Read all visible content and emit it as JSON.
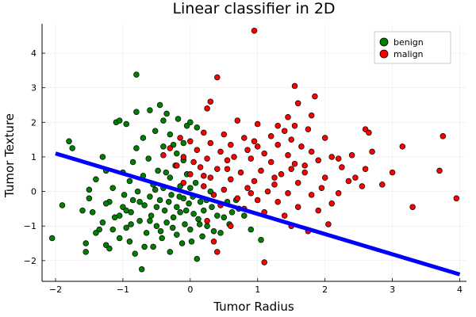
{
  "chart_data": {
    "type": "scatter",
    "title": "Linear classifier in 2D",
    "xlabel": "Tumor Radius",
    "ylabel": "Tumor Texture",
    "xlim": [
      -2.2,
      4.1
    ],
    "ylim": [
      -2.6,
      4.85
    ],
    "xticks": [
      -2,
      -1,
      0,
      1,
      2,
      3,
      4
    ],
    "yticks": [
      -2,
      -1,
      0,
      1,
      2,
      3,
      4
    ],
    "grid": true,
    "legend_position": "top-right",
    "series": [
      {
        "name": "benign",
        "color": "#008000",
        "points": [
          [
            -2.05,
            -1.35
          ],
          [
            -1.8,
            1.45
          ],
          [
            -1.75,
            1.25
          ],
          [
            -1.6,
            -0.55
          ],
          [
            -1.55,
            -1.5
          ],
          [
            -1.55,
            -1.75
          ],
          [
            -1.5,
            -0.2
          ],
          [
            -1.45,
            -0.6
          ],
          [
            -1.4,
            0.35
          ],
          [
            -1.35,
            -1.1
          ],
          [
            -1.3,
            -0.9
          ],
          [
            -1.3,
            1.0
          ],
          [
            -1.25,
            0.6
          ],
          [
            -1.25,
            -1.55
          ],
          [
            -1.2,
            -1.65
          ],
          [
            -1.2,
            -0.3
          ],
          [
            -1.15,
            0.1
          ],
          [
            -1.12,
            -0.75
          ],
          [
            -1.1,
            2.0
          ],
          [
            -1.05,
            2.05
          ],
          [
            -1.05,
            -1.35
          ],
          [
            -1.0,
            0.55
          ],
          [
            -1.0,
            -0.45
          ],
          [
            -0.98,
            -0.1
          ],
          [
            -0.95,
            1.95
          ],
          [
            -0.95,
            -1.05
          ],
          [
            -0.9,
            0.3
          ],
          [
            -0.9,
            -1.45
          ],
          [
            -0.88,
            -0.6
          ],
          [
            -0.85,
            0.85
          ],
          [
            -0.85,
            -0.25
          ],
          [
            -0.82,
            -1.8
          ],
          [
            -0.8,
            3.38
          ],
          [
            -0.8,
            2.3
          ],
          [
            -0.8,
            1.25
          ],
          [
            -0.78,
            0.0
          ],
          [
            -0.75,
            -0.85
          ],
          [
            -0.72,
            -2.25
          ],
          [
            -0.7,
            1.55
          ],
          [
            -0.7,
            0.45
          ],
          [
            -0.68,
            -0.4
          ],
          [
            -0.65,
            -1.2
          ],
          [
            -0.62,
            0.95
          ],
          [
            -0.6,
            2.35
          ],
          [
            -0.6,
            -0.15
          ],
          [
            -0.58,
            -0.7
          ],
          [
            -0.55,
            0.2
          ],
          [
            -0.55,
            -1.6
          ],
          [
            -0.52,
            1.75
          ],
          [
            -0.5,
            -0.45
          ],
          [
            -0.5,
            -1.0
          ],
          [
            -0.48,
            0.6
          ],
          [
            -0.45,
            -0.25
          ],
          [
            -0.45,
            2.5
          ],
          [
            -0.42,
            -1.35
          ],
          [
            -0.4,
            1.3
          ],
          [
            -0.4,
            0.1
          ],
          [
            -0.38,
            -0.55
          ],
          [
            -0.35,
            -0.9
          ],
          [
            -0.35,
            2.25
          ],
          [
            -0.32,
            -0.3
          ],
          [
            -0.3,
            0.4
          ],
          [
            -0.3,
            -1.75
          ],
          [
            -0.28,
            -0.1
          ],
          [
            -0.25,
            1.35
          ],
          [
            -0.25,
            -0.75
          ],
          [
            -0.22,
            0.75
          ],
          [
            -0.2,
            -0.45
          ],
          [
            -0.2,
            -1.25
          ],
          [
            -0.18,
            2.1
          ],
          [
            -0.15,
            0.15
          ],
          [
            -0.15,
            -0.6
          ],
          [
            -0.12,
            -1.5
          ],
          [
            -0.1,
            0.9
          ],
          [
            -0.1,
            -0.2
          ],
          [
            -0.08,
            -0.95
          ],
          [
            -0.05,
            1.9
          ],
          [
            -0.05,
            0.5
          ],
          [
            -0.02,
            -0.35
          ],
          [
            0.0,
            -1.1
          ],
          [
            0.0,
            0.1
          ],
          [
            0.02,
            -1.45
          ],
          [
            0.05,
            -0.65
          ],
          [
            0.08,
            0.25
          ],
          [
            0.1,
            -1.95
          ],
          [
            0.12,
            -0.8
          ],
          [
            0.15,
            -0.3
          ],
          [
            0.18,
            -1.3
          ],
          [
            0.2,
            -0.55
          ],
          [
            0.25,
            -1.0
          ],
          [
            0.3,
            0.0
          ],
          [
            0.32,
            -0.45
          ],
          [
            0.35,
            -1.15
          ],
          [
            0.4,
            -0.7
          ],
          [
            0.45,
            -1.2
          ],
          [
            0.5,
            -0.75
          ],
          [
            0.55,
            -0.3
          ],
          [
            0.58,
            -0.95
          ],
          [
            0.62,
            -0.6
          ],
          [
            0.68,
            -0.25
          ],
          [
            0.72,
            -0.5
          ],
          [
            0.8,
            -0.7
          ],
          [
            0.9,
            -1.1
          ],
          [
            1.05,
            -1.4
          ],
          [
            -1.5,
            0.05
          ],
          [
            -1.4,
            -1.2
          ],
          [
            -1.25,
            -0.35
          ],
          [
            -1.15,
            -1.1
          ],
          [
            -1.05,
            -0.7
          ],
          [
            -0.95,
            -0.55
          ],
          [
            -0.88,
            -0.95
          ],
          [
            -0.75,
            -0.3
          ],
          [
            -0.68,
            -1.6
          ],
          [
            -0.6,
            -0.85
          ],
          [
            -0.52,
            0.05
          ],
          [
            -0.44,
            -1.15
          ],
          [
            -0.36,
            0.55
          ],
          [
            -0.26,
            -1.05
          ],
          [
            -0.16,
            -0.15
          ],
          [
            -0.06,
            -0.55
          ],
          [
            0.04,
            -0.15
          ],
          [
            0.14,
            -0.95
          ],
          [
            0.24,
            -0.25
          ],
          [
            -0.4,
            2.05
          ],
          [
            -0.3,
            1.65
          ],
          [
            -0.2,
            1.1
          ],
          [
            -0.1,
            1.4
          ],
          [
            0.0,
            2.0
          ],
          [
            0.1,
            1.85
          ],
          [
            -1.9,
            -0.4
          ]
        ]
      },
      {
        "name": "malign",
        "color": "#ff0000",
        "points": [
          [
            0.95,
            4.65
          ],
          [
            0.4,
            3.3
          ],
          [
            1.55,
            3.05
          ],
          [
            1.85,
            2.75
          ],
          [
            1.6,
            2.55
          ],
          [
            0.3,
            2.6
          ],
          [
            0.25,
            2.4
          ],
          [
            1.45,
            2.15
          ],
          [
            1.8,
            2.2
          ],
          [
            0.7,
            2.05
          ],
          [
            1.0,
            1.95
          ],
          [
            1.3,
            1.9
          ],
          [
            1.55,
            1.9
          ],
          [
            2.6,
            1.8
          ],
          [
            2.65,
            1.7
          ],
          [
            1.75,
            1.8
          ],
          [
            0.2,
            1.7
          ],
          [
            0.5,
            1.65
          ],
          [
            0.8,
            1.55
          ],
          [
            1.2,
            1.6
          ],
          [
            1.5,
            1.5
          ],
          [
            2.0,
            1.55
          ],
          [
            0.0,
            1.45
          ],
          [
            0.3,
            1.4
          ],
          [
            0.6,
            1.35
          ],
          [
            0.95,
            1.45
          ],
          [
            1.3,
            1.35
          ],
          [
            1.65,
            1.3
          ],
          [
            2.7,
            1.15
          ],
          [
            3.15,
            1.3
          ],
          [
            3.75,
            1.6
          ],
          [
            -0.3,
            1.25
          ],
          [
            0.1,
            1.2
          ],
          [
            0.45,
            1.15
          ],
          [
            0.85,
            1.2
          ],
          [
            1.1,
            1.1
          ],
          [
            1.45,
            1.05
          ],
          [
            1.8,
            1.15
          ],
          [
            2.1,
            1.0
          ],
          [
            2.4,
            1.05
          ],
          [
            -0.4,
            1.05
          ],
          [
            -0.1,
            1.0
          ],
          [
            0.25,
            0.95
          ],
          [
            0.55,
            0.9
          ],
          [
            0.9,
            0.95
          ],
          [
            1.2,
            0.85
          ],
          [
            1.55,
            0.8
          ],
          [
            1.9,
            0.9
          ],
          [
            2.25,
            0.7
          ],
          [
            2.6,
            0.65
          ],
          [
            3.0,
            0.55
          ],
          [
            3.7,
            0.6
          ],
          [
            -0.2,
            0.75
          ],
          [
            0.15,
            0.7
          ],
          [
            0.4,
            0.65
          ],
          [
            0.75,
            0.55
          ],
          [
            1.05,
            0.6
          ],
          [
            1.35,
            0.5
          ],
          [
            1.7,
            0.55
          ],
          [
            2.0,
            0.4
          ],
          [
            2.35,
            0.3
          ],
          [
            2.85,
            0.2
          ],
          [
            0.0,
            0.5
          ],
          [
            0.3,
            0.4
          ],
          [
            0.6,
            0.35
          ],
          [
            0.95,
            0.3
          ],
          [
            1.25,
            0.2
          ],
          [
            1.6,
            0.25
          ],
          [
            1.95,
            0.1
          ],
          [
            2.2,
            -0.05
          ],
          [
            2.55,
            0.15
          ],
          [
            -0.1,
            0.25
          ],
          [
            0.2,
            0.15
          ],
          [
            0.5,
            0.05
          ],
          [
            0.85,
            0.1
          ],
          [
            1.15,
            0.0
          ],
          [
            1.45,
            -0.05
          ],
          [
            1.8,
            -0.1
          ],
          [
            2.1,
            -0.35
          ],
          [
            0.35,
            -0.1
          ],
          [
            0.7,
            -0.2
          ],
          [
            1.0,
            -0.25
          ],
          [
            1.3,
            -0.3
          ],
          [
            1.6,
            -0.45
          ],
          [
            1.9,
            -0.55
          ],
          [
            3.3,
            -0.45
          ],
          [
            3.95,
            -0.2
          ],
          [
            0.45,
            -0.4
          ],
          [
            0.8,
            -0.5
          ],
          [
            1.1,
            -0.6
          ],
          [
            1.4,
            -0.7
          ],
          [
            1.75,
            -1.15
          ],
          [
            2.05,
            -0.95
          ],
          [
            0.25,
            -0.85
          ],
          [
            0.6,
            -1.0
          ],
          [
            0.35,
            -1.45
          ],
          [
            0.4,
            -1.75
          ],
          [
            1.1,
            -2.05
          ],
          [
            1.5,
            -1.0
          ],
          [
            2.45,
            0.4
          ],
          [
            -0.15,
            1.55
          ],
          [
            0.05,
            0.85
          ],
          [
            0.65,
            1.0
          ],
          [
            1.0,
            1.3
          ],
          [
            1.4,
            1.75
          ],
          [
            1.7,
            0.75
          ],
          [
            2.2,
            0.95
          ],
          [
            0.55,
            0.65
          ],
          [
            1.25,
            0.4
          ],
          [
            1.5,
            0.65
          ],
          [
            0.2,
            0.45
          ],
          [
            0.9,
            -0.05
          ]
        ]
      }
    ],
    "decision_line": {
      "color": "#0000ff",
      "from": [
        -2.0,
        1.1
      ],
      "to": [
        4.0,
        -2.4
      ]
    }
  }
}
